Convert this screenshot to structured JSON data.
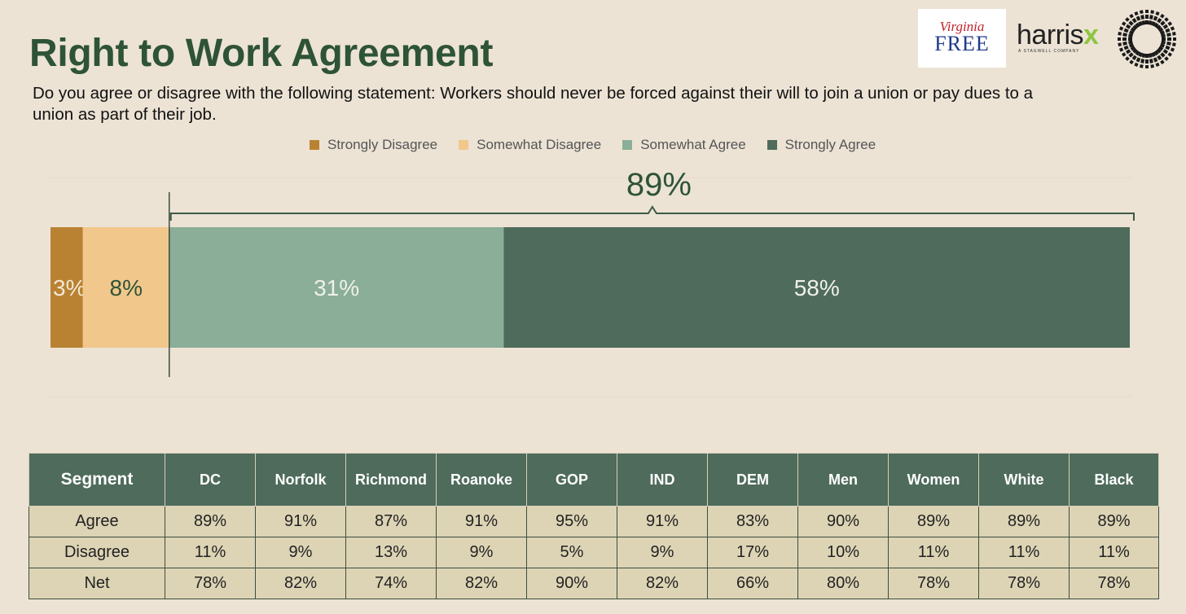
{
  "header": {
    "title": "Right to Work Agreement",
    "question": "Do you agree or disagree with the following statement: Workers should never be forced against their will to join a union or pay dues to a union as part of their job."
  },
  "logos": {
    "virginia_free_top": "Virginia",
    "virginia_free_bottom": "FREE",
    "harrisx_main": "harris",
    "harrisx_x": "x",
    "harrisx_sub": "A STAGWELL COMPANY"
  },
  "chart_data": {
    "type": "bar",
    "orientation": "horizontal-stacked",
    "series": [
      {
        "name": "Strongly Disagree",
        "value": 3,
        "label": "3%",
        "color": "#b98233"
      },
      {
        "name": "Somewhat Disagree",
        "value": 8,
        "label": "8%",
        "color": "#f2c78c"
      },
      {
        "name": "Somewhat Agree",
        "value": 31,
        "label": "31%",
        "color": "#8aae98"
      },
      {
        "name": "Strongly Agree",
        "value": 58,
        "label": "58%",
        "color": "#4e6b5b"
      }
    ],
    "agree_total_label": "89%",
    "xlim": [
      0,
      100
    ]
  },
  "table": {
    "headers": [
      "Segment",
      "DC",
      "Norfolk",
      "Richmond",
      "Roanoke",
      "GOP",
      "IND",
      "DEM",
      "Men",
      "Women",
      "White",
      "Black"
    ],
    "rows": [
      [
        "Agree",
        "89%",
        "91%",
        "87%",
        "91%",
        "95%",
        "91%",
        "83%",
        "90%",
        "89%",
        "89%",
        "89%"
      ],
      [
        "Disagree",
        "11%",
        "9%",
        "13%",
        "9%",
        "5%",
        "9%",
        "17%",
        "10%",
        "11%",
        "11%",
        "11%"
      ],
      [
        "Net",
        "78%",
        "82%",
        "74%",
        "82%",
        "90%",
        "82%",
        "66%",
        "80%",
        "78%",
        "78%",
        "78%"
      ]
    ]
  }
}
